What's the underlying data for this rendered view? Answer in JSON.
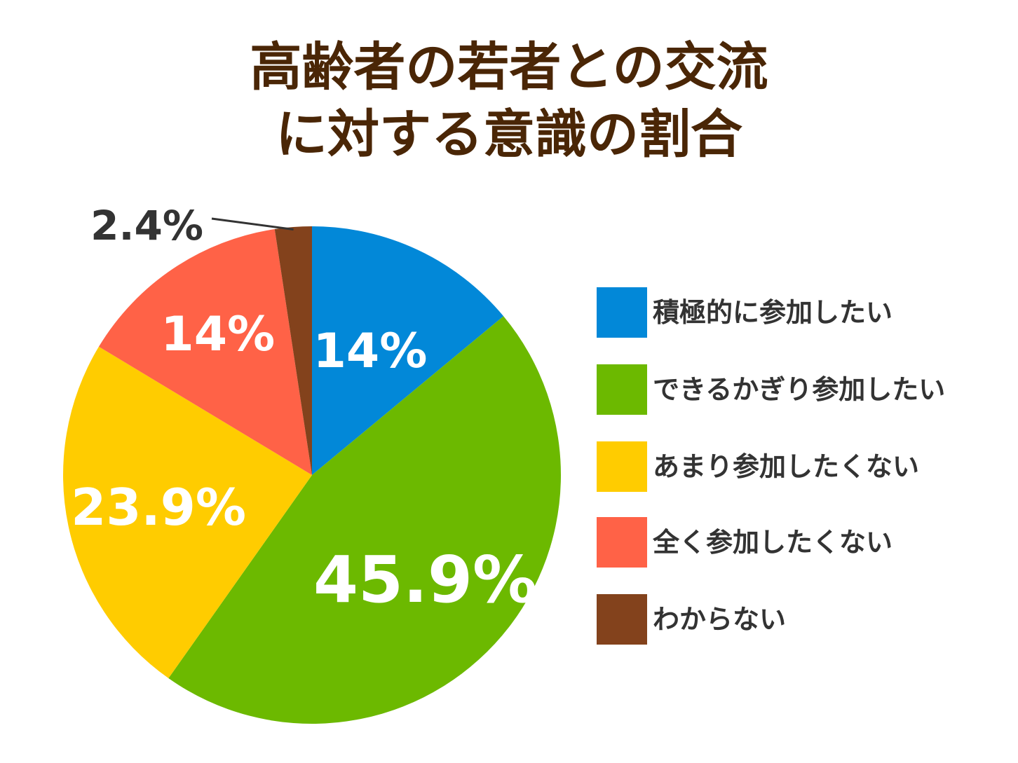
{
  "chart_data": {
    "type": "pie",
    "title_lines": [
      "高齢者の若者との交流",
      "に対する意識の割合"
    ],
    "slices": [
      {
        "label": "積極的に参加したい",
        "value": 14,
        "value_label": "14%",
        "color": "#0288d8"
      },
      {
        "label": "できるかぎり参加したい",
        "value": 45.9,
        "value_label": "45.9%",
        "color": "#6cb900"
      },
      {
        "label": "あまり参加したくない",
        "value": 23.9,
        "value_label": "23.9%",
        "color": "#ffcc00"
      },
      {
        "label": "全く参加したくない",
        "value": 14,
        "value_label": "14%",
        "color": "#ff6247"
      },
      {
        "label": "わからない",
        "value": 2.4,
        "value_label": "2.4%",
        "color": "#83421c"
      }
    ],
    "start": "top",
    "direction": "clockwise",
    "legend_position": "right"
  }
}
